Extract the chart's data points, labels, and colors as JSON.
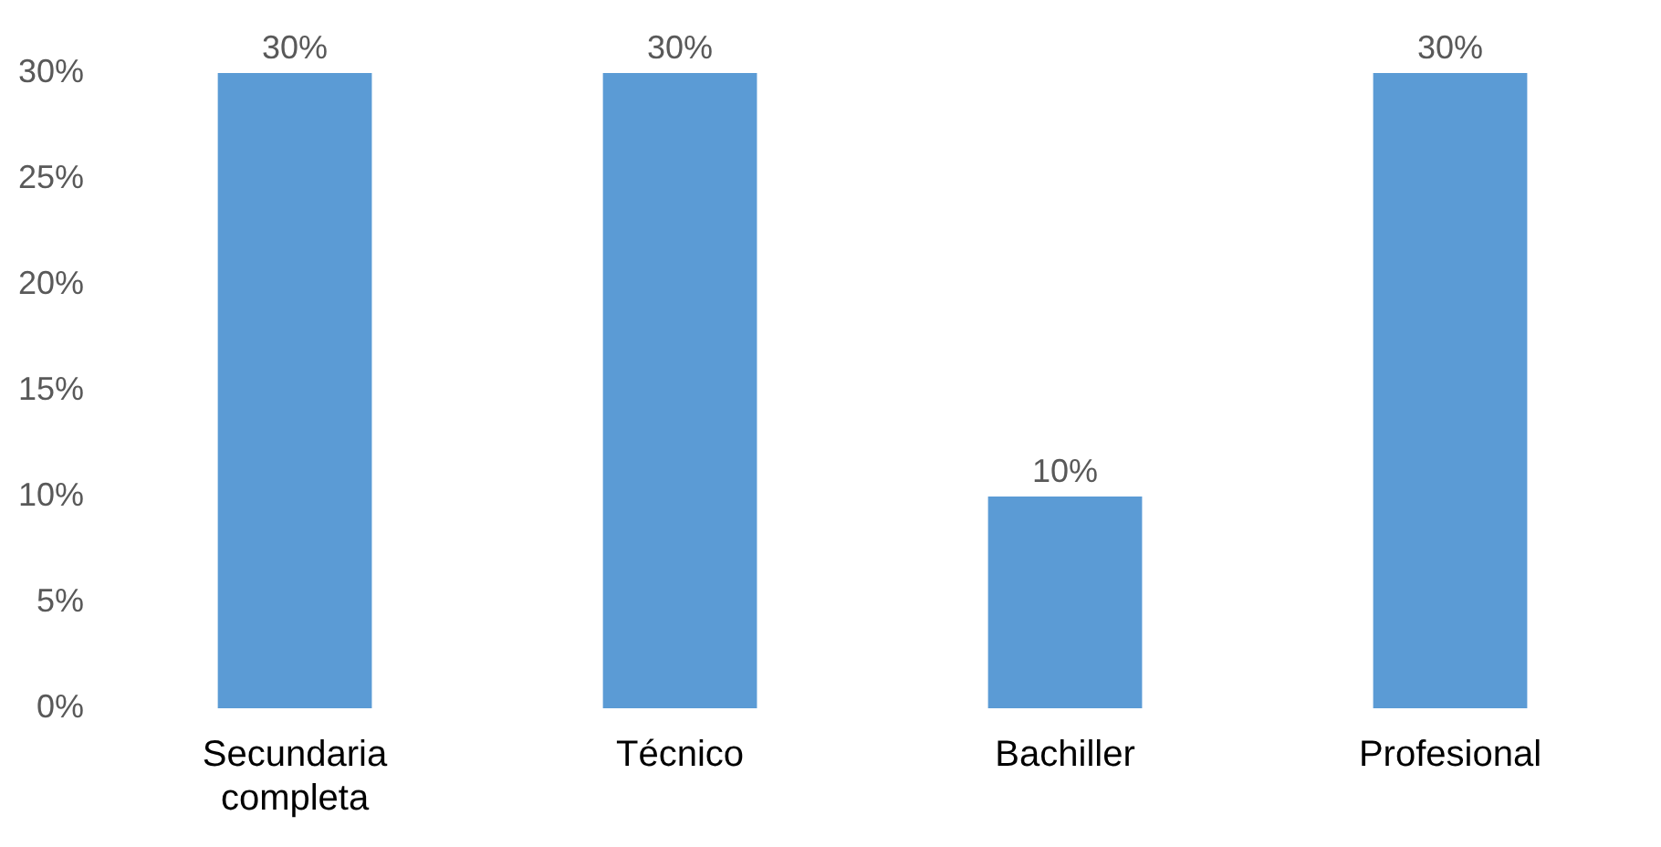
{
  "chart_data": {
    "type": "bar",
    "categories": [
      "Secundaria completa",
      "Técnico",
      "Bachiller",
      "Profesional"
    ],
    "values": [
      30,
      30,
      10,
      30
    ],
    "value_labels": [
      "30%",
      "30%",
      "10%",
      "30%"
    ],
    "color": "#5b9bd5",
    "ylim": [
      0,
      30
    ],
    "yticks": [
      {
        "value": 0,
        "label": "0%"
      },
      {
        "value": 5,
        "label": "5%"
      },
      {
        "value": 10,
        "label": "10%"
      },
      {
        "value": 15,
        "label": "15%"
      },
      {
        "value": 20,
        "label": "20%"
      },
      {
        "value": 25,
        "label": "25%"
      },
      {
        "value": 30,
        "label": "30%"
      }
    ],
    "grid": false,
    "legend": false
  }
}
